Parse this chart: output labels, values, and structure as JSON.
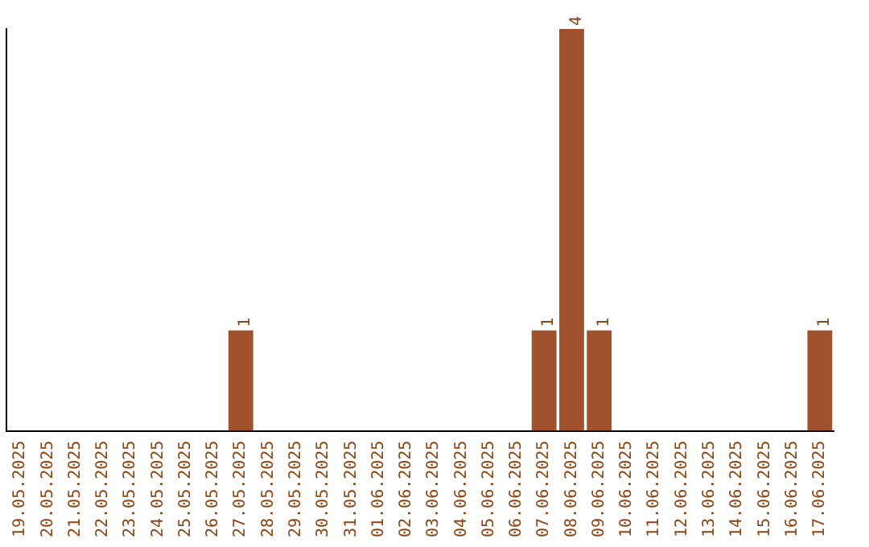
{
  "chart_data": {
    "type": "bar",
    "categories": [
      "19.05.2025",
      "20.05.2025",
      "21.05.2025",
      "22.05.2025",
      "23.05.2025",
      "24.05.2025",
      "25.05.2025",
      "26.05.2025",
      "27.05.2025",
      "28.05.2025",
      "29.05.2025",
      "30.05.2025",
      "31.05.2025",
      "01.06.2025",
      "02.06.2025",
      "03.06.2025",
      "04.06.2025",
      "05.06.2025",
      "06.06.2025",
      "07.06.2025",
      "08.06.2025",
      "09.06.2025",
      "10.06.2025",
      "11.06.2025",
      "12.06.2025",
      "13.06.2025",
      "14.06.2025",
      "15.06.2025",
      "16.06.2025",
      "17.06.2025"
    ],
    "values": [
      0,
      0,
      0,
      0,
      0,
      0,
      0,
      0,
      1,
      0,
      0,
      0,
      0,
      0,
      0,
      0,
      0,
      0,
      0,
      1,
      4,
      1,
      0,
      0,
      0,
      0,
      0,
      0,
      0,
      1
    ],
    "value_labels": [
      null,
      null,
      null,
      null,
      null,
      null,
      null,
      null,
      "1",
      null,
      null,
      null,
      null,
      null,
      null,
      null,
      null,
      null,
      null,
      "1",
      "4",
      "1",
      null,
      null,
      null,
      null,
      null,
      null,
      null,
      "1"
    ],
    "color": "#a0522d",
    "ylim": [
      0,
      4
    ],
    "tick_labels": "x",
    "grid": false,
    "legend": false
  }
}
